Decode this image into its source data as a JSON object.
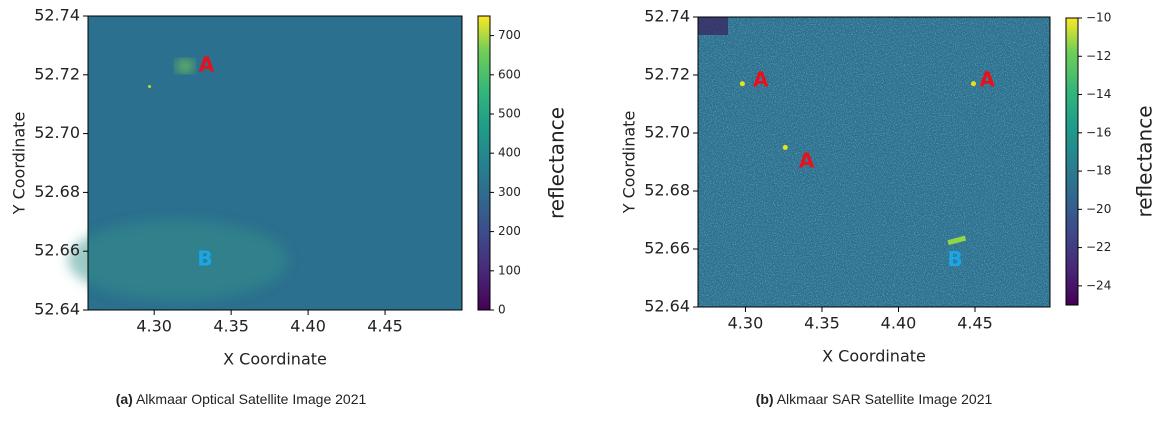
{
  "chart_data": [
    {
      "type": "heatmap",
      "colormap": "viridis",
      "xlabel": "X Coordinate",
      "ylabel": "Y Coordinate",
      "xlim": [
        4.257,
        4.5
      ],
      "ylim": [
        52.64,
        52.74
      ],
      "xticks": [
        {
          "value": 4.3,
          "label": "4.30"
        },
        {
          "value": 4.35,
          "label": "4.35"
        },
        {
          "value": 4.4,
          "label": "4.40"
        },
        {
          "value": 4.45,
          "label": "4.45"
        }
      ],
      "yticks": [
        {
          "value": 52.64,
          "label": "52.64"
        },
        {
          "value": 52.66,
          "label": "52.66"
        },
        {
          "value": 52.68,
          "label": "52.68"
        },
        {
          "value": 52.7,
          "label": "52.70"
        },
        {
          "value": 52.72,
          "label": "52.72"
        },
        {
          "value": 52.74,
          "label": "52.74"
        }
      ],
      "colorbar_label": "reflectance",
      "clim": [
        0,
        750
      ],
      "cticks": [
        0,
        100,
        200,
        300,
        400,
        500,
        600,
        700
      ],
      "annotations": [
        {
          "text": "A",
          "x": 4.334,
          "y": 52.723,
          "color": "#e8101a"
        },
        {
          "text": "B",
          "x": 4.333,
          "y": 52.657,
          "color": "#1aa6e8"
        }
      ],
      "caption_label": "(a)",
      "caption": "Alkmaar Optical Satellite Image 2021"
    },
    {
      "type": "heatmap",
      "colormap": "viridis",
      "xlabel": "X Coordinate",
      "ylabel": "Y Coordinate",
      "xlim": [
        4.269,
        4.499
      ],
      "ylim": [
        52.64,
        52.74
      ],
      "xticks": [
        {
          "value": 4.3,
          "label": "4.30"
        },
        {
          "value": 4.35,
          "label": "4.35"
        },
        {
          "value": 4.4,
          "label": "4.40"
        },
        {
          "value": 4.45,
          "label": "4.45"
        }
      ],
      "yticks": [
        {
          "value": 52.64,
          "label": "52.64"
        },
        {
          "value": 52.66,
          "label": "52.66"
        },
        {
          "value": 52.68,
          "label": "52.68"
        },
        {
          "value": 52.7,
          "label": "52.70"
        },
        {
          "value": 52.72,
          "label": "52.72"
        },
        {
          "value": 52.74,
          "label": "52.74"
        }
      ],
      "colorbar_label": "reflectance",
      "clim": [
        -25,
        -10
      ],
      "cticks": [
        {
          "value": -10,
          "label": "−10"
        },
        {
          "value": -12,
          "label": "−12"
        },
        {
          "value": -14,
          "label": "−14"
        },
        {
          "value": -16,
          "label": "−16"
        },
        {
          "value": -18,
          "label": "−18"
        },
        {
          "value": -20,
          "label": "−20"
        },
        {
          "value": -22,
          "label": "−22"
        },
        {
          "value": -24,
          "label": "−24"
        }
      ],
      "annotations": [
        {
          "text": "A",
          "x": 4.31,
          "y": 52.718,
          "color": "#e8101a"
        },
        {
          "text": "A",
          "x": 4.34,
          "y": 52.69,
          "color": "#e8101a"
        },
        {
          "text": "A",
          "x": 4.458,
          "y": 52.718,
          "color": "#e8101a"
        },
        {
          "text": "B",
          "x": 4.437,
          "y": 52.656,
          "color": "#1aa6e8"
        }
      ],
      "caption_label": "(b)",
      "caption": "Alkmaar SAR Satellite Image 2021"
    }
  ]
}
